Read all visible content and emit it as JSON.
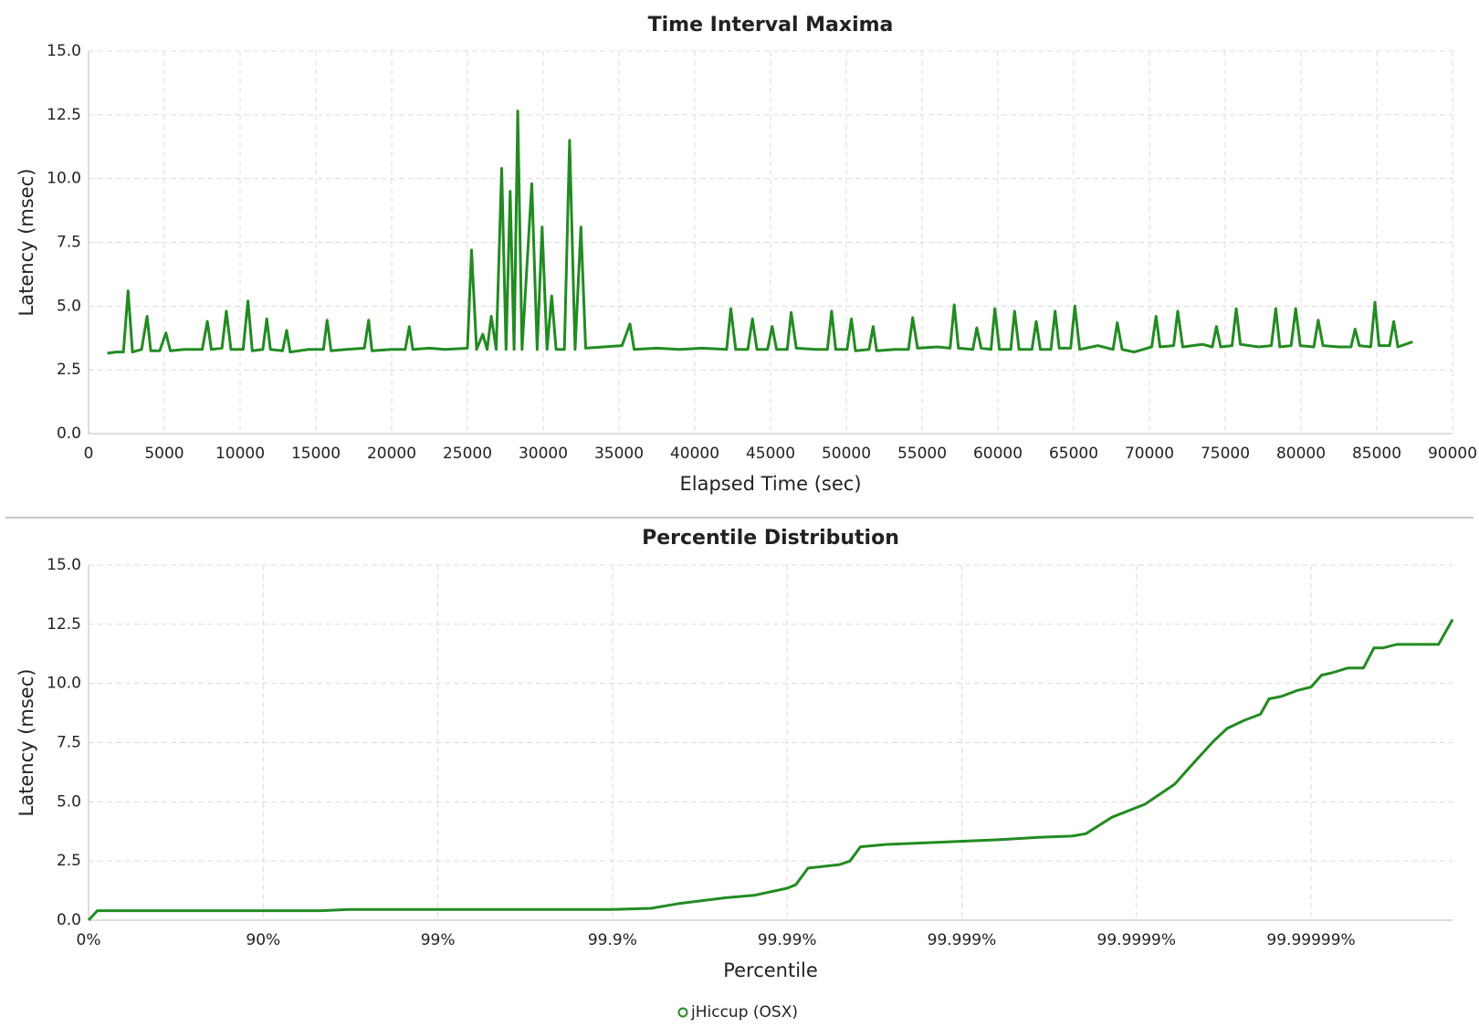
{
  "chart_data": [
    {
      "type": "line",
      "title": "Time Interval Maxima",
      "xlabel": "Elapsed Time (sec)",
      "ylabel": "Latency (msec)",
      "xlim": [
        0,
        90000
      ],
      "xticks": [
        0,
        5000,
        10000,
        15000,
        20000,
        25000,
        30000,
        35000,
        40000,
        45000,
        50000,
        55000,
        60000,
        65000,
        70000,
        75000,
        80000,
        85000,
        90000
      ],
      "ylim": [
        0,
        15
      ],
      "yticks": [
        {
          "value": 0,
          "label": "0.0"
        },
        2.5,
        {
          "value": 5,
          "label": "5.0"
        },
        7.5,
        {
          "value": 10,
          "label": "10.0"
        },
        12.5,
        {
          "value": 15,
          "label": "15.0"
        }
      ],
      "grid": true,
      "x": [
        1240,
        1800,
        2300,
        2610,
        2900,
        3500,
        3860,
        4100,
        4700,
        5100,
        5400,
        6300,
        7500,
        7840,
        8100,
        8800,
        9090,
        9400,
        10200,
        10520,
        10800,
        11500,
        11760,
        12000,
        12800,
        13070,
        13300,
        14500,
        15500,
        15740,
        16000,
        17000,
        18200,
        18480,
        18700,
        20000,
        20900,
        21160,
        21400,
        22500,
        23500,
        25000,
        25270,
        25600,
        26010,
        26300,
        26570,
        26900,
        27260,
        27550,
        27820,
        28080,
        28320,
        28600,
        29250,
        29600,
        29930,
        30250,
        30560,
        30850,
        31400,
        31740,
        32100,
        32490,
        32800,
        34000,
        35200,
        35720,
        36000,
        37500,
        39000,
        40500,
        42100,
        42380,
        42700,
        43500,
        43810,
        44100,
        44800,
        45110,
        45400,
        46100,
        46360,
        46700,
        48000,
        48750,
        49030,
        49300,
        50050,
        50340,
        50600,
        51500,
        51770,
        52000,
        53200,
        54100,
        54380,
        54700,
        56000,
        56850,
        57120,
        57400,
        58350,
        58610,
        58900,
        59550,
        59800,
        60100,
        60850,
        61100,
        61400,
        62250,
        62530,
        62800,
        63500,
        63780,
        64050,
        64800,
        65080,
        65400,
        66600,
        67600,
        67880,
        68200,
        69000,
        70150,
        70440,
        70700,
        71600,
        71870,
        72200,
        73500,
        74150,
        74420,
        74700,
        75450,
        75730,
        76000,
        77200,
        78050,
        78340,
        78600,
        79350,
        79650,
        79950,
        80850,
        81140,
        81450,
        82500,
        83300,
        83570,
        83850,
        84600,
        84880,
        85150,
        85850,
        86120,
        86400,
        87370
      ],
      "series": [
        {
          "color": "#228b22",
          "values": [
            3.15,
            3.2,
            3.2,
            5.6,
            3.2,
            3.3,
            4.6,
            3.25,
            3.25,
            3.95,
            3.25,
            3.3,
            3.3,
            4.4,
            3.3,
            3.35,
            4.8,
            3.3,
            3.3,
            5.2,
            3.25,
            3.3,
            4.5,
            3.3,
            3.25,
            4.05,
            3.2,
            3.3,
            3.3,
            4.45,
            3.25,
            3.3,
            3.35,
            4.45,
            3.25,
            3.3,
            3.3,
            4.2,
            3.3,
            3.35,
            3.3,
            3.35,
            7.2,
            3.3,
            3.9,
            3.3,
            4.6,
            3.3,
            10.4,
            3.3,
            9.5,
            3.3,
            12.65,
            3.3,
            9.8,
            3.3,
            8.1,
            3.3,
            5.4,
            3.3,
            3.3,
            11.5,
            3.3,
            8.1,
            3.35,
            3.4,
            3.45,
            4.3,
            3.3,
            3.35,
            3.3,
            3.35,
            3.3,
            4.9,
            3.3,
            3.3,
            4.5,
            3.3,
            3.3,
            4.2,
            3.3,
            3.3,
            4.75,
            3.35,
            3.3,
            3.3,
            4.8,
            3.3,
            3.3,
            4.5,
            3.25,
            3.3,
            4.2,
            3.25,
            3.3,
            3.3,
            4.55,
            3.35,
            3.4,
            3.35,
            5.05,
            3.35,
            3.3,
            4.15,
            3.35,
            3.3,
            4.9,
            3.3,
            3.3,
            4.8,
            3.3,
            3.3,
            4.4,
            3.3,
            3.3,
            4.8,
            3.35,
            3.35,
            5.0,
            3.3,
            3.45,
            3.3,
            4.35,
            3.3,
            3.2,
            3.4,
            4.6,
            3.4,
            3.45,
            4.8,
            3.4,
            3.5,
            3.4,
            4.2,
            3.4,
            3.45,
            4.9,
            3.5,
            3.4,
            3.45,
            4.9,
            3.4,
            3.45,
            4.9,
            3.45,
            3.4,
            4.45,
            3.45,
            3.4,
            3.4,
            4.1,
            3.45,
            3.4,
            5.15,
            3.45,
            3.45,
            4.4,
            3.4,
            3.6
          ]
        }
      ]
    },
    {
      "type": "line",
      "title": "Percentile Distribution",
      "xlabel": "Percentile",
      "ylabel": "Latency (msec)",
      "xlim": [
        0,
        7.81
      ],
      "xticks": [
        {
          "value": 0,
          "label": "0%"
        },
        {
          "value": 1,
          "label": "90%"
        },
        {
          "value": 2,
          "label": "99%"
        },
        {
          "value": 3,
          "label": "99.9%"
        },
        {
          "value": 4,
          "label": "99.99%"
        },
        {
          "value": 5,
          "label": "99.999%"
        },
        {
          "value": 6,
          "label": "99.9999%"
        },
        {
          "value": 7,
          "label": "99.99999%"
        }
      ],
      "ylim": [
        0,
        15
      ],
      "yticks": [
        {
          "value": 0,
          "label": "0.0"
        },
        2.5,
        {
          "value": 5,
          "label": "5.0"
        },
        7.5,
        {
          "value": 10,
          "label": "10.0"
        },
        12.5,
        {
          "value": 15,
          "label": "15.0"
        }
      ],
      "grid": true,
      "x": [
        0,
        0.05,
        0.19,
        1.33,
        1.49,
        2.36,
        3.0,
        3.22,
        3.38,
        3.65,
        3.81,
        4.0,
        4.05,
        4.12,
        4.3,
        4.36,
        4.42,
        4.57,
        4.9,
        5.22,
        5.44,
        5.63,
        5.71,
        5.86,
        6.05,
        6.22,
        6.31,
        6.44,
        6.52,
        6.62,
        6.71,
        6.76,
        6.83,
        6.92,
        7.0,
        7.06,
        7.12,
        7.21,
        7.3,
        7.36,
        7.41,
        7.49,
        7.73,
        7.81
      ],
      "series": [
        {
          "name": "jHiccup (OSX)",
          "color": "#228b22",
          "values": [
            0,
            0.4,
            0.4,
            0.4,
            0.45,
            0.45,
            0.45,
            0.5,
            0.7,
            0.95,
            1.05,
            1.35,
            1.5,
            2.2,
            2.35,
            2.5,
            3.1,
            3.2,
            3.3,
            3.4,
            3.5,
            3.55,
            3.65,
            4.35,
            4.9,
            5.75,
            6.5,
            7.55,
            8.1,
            8.45,
            8.7,
            9.35,
            9.45,
            9.7,
            9.85,
            10.35,
            10.45,
            10.65,
            10.65,
            11.5,
            11.5,
            11.65,
            11.65,
            12.7
          ]
        }
      ]
    }
  ]
}
